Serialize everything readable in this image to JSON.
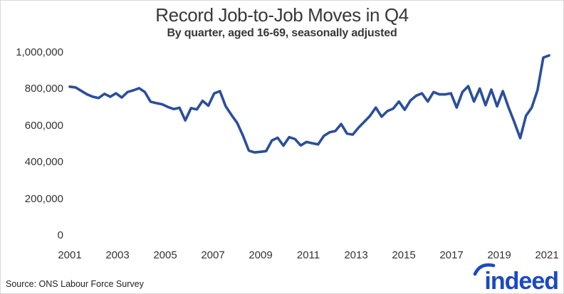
{
  "header": {
    "title": "Record Job-to-Job Moves in Q4",
    "subtitle": "By quarter, aged 16-69, seasonally adjusted"
  },
  "footer": {
    "source": "Source: ONS Labour Force Survey",
    "brand": "indeed",
    "brand_color": "#1b49c5"
  },
  "chart_data": {
    "type": "line",
    "title": "Record Job-to-Job Moves in Q4",
    "subtitle": "By quarter, aged 16-69, seasonally adjusted",
    "series_name": "Job-to-job moves",
    "line_color": "#2b4e9d",
    "grid": false,
    "legend": "none",
    "frequency": "quarterly",
    "x_start": "2001 Q1",
    "x_end": "2021 Q4",
    "x_tick_labels": [
      "2001",
      "2003",
      "2005",
      "2007",
      "2009",
      "2011",
      "2013",
      "2015",
      "2017",
      "2019",
      "2021"
    ],
    "y_tick_labels": [
      "0",
      "200,000",
      "400,000",
      "600,000",
      "800,000",
      "1,000,000"
    ],
    "y_tick_values": [
      0,
      200000,
      400000,
      600000,
      800000,
      1000000
    ],
    "ylim": [
      0,
      1000000
    ],
    "values": [
      814000,
      810000,
      791000,
      772000,
      759000,
      752000,
      775000,
      759000,
      778000,
      755000,
      785000,
      794000,
      806000,
      785000,
      732000,
      724000,
      718000,
      703000,
      692000,
      699000,
      630000,
      697000,
      690000,
      737000,
      710000,
      777000,
      790000,
      707000,
      660000,
      616000,
      545000,
      465000,
      455000,
      458000,
      462000,
      520000,
      535000,
      492000,
      538000,
      528000,
      493000,
      512000,
      505000,
      499000,
      545000,
      565000,
      572000,
      610000,
      558000,
      552000,
      590000,
      622000,
      655000,
      700000,
      650000,
      681000,
      694000,
      733000,
      688000,
      739000,
      765000,
      778000,
      733000,
      785000,
      772000,
      772000,
      778000,
      700000,
      785000,
      817000,
      733000,
      804000,
      713000,
      798000,
      707000,
      790000,
      700000,
      620000,
      533000,
      655000,
      700000,
      795000,
      973000,
      985000
    ]
  }
}
